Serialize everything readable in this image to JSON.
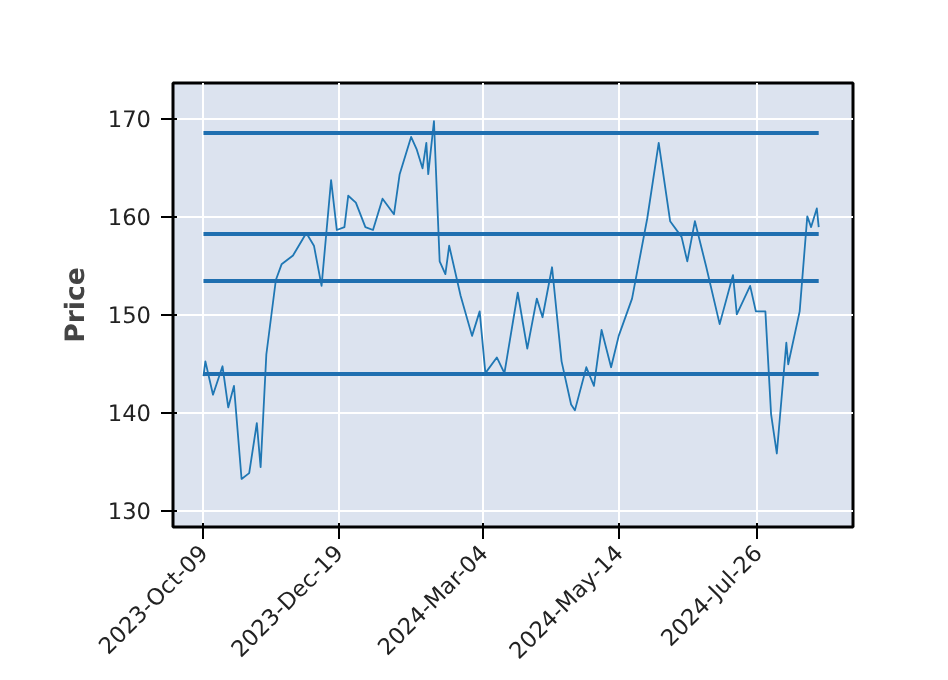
{
  "chart_data": {
    "type": "line",
    "ylabel": "Price",
    "x": [
      "2023-10-09",
      "2023-10-10",
      "2023-10-14",
      "2023-10-19",
      "2023-10-22",
      "2023-10-25",
      "2023-10-29",
      "2023-11-02",
      "2023-11-06",
      "2023-11-08",
      "2023-11-11",
      "2023-11-16",
      "2023-11-19",
      "2023-11-25",
      "2023-12-02",
      "2023-12-06",
      "2023-12-10",
      "2023-12-15",
      "2023-12-18",
      "2023-12-22",
      "2023-12-24",
      "2023-12-28",
      "2024-01-02",
      "2024-01-06",
      "2024-01-11",
      "2024-01-17",
      "2024-01-20",
      "2024-01-26",
      "2024-01-29",
      "2024-02-01",
      "2024-02-03",
      "2024-02-04",
      "2024-02-07",
      "2024-02-10",
      "2024-02-13",
      "2024-02-15",
      "2024-02-21",
      "2024-02-27",
      "2024-03-02",
      "2024-03-05",
      "2024-03-11",
      "2024-03-15",
      "2024-03-22",
      "2024-03-27",
      "2024-04-01",
      "2024-04-04",
      "2024-04-09",
      "2024-04-14",
      "2024-04-19",
      "2024-04-21",
      "2024-04-27",
      "2024-05-01",
      "2024-05-05",
      "2024-05-10",
      "2024-05-14",
      "2024-05-21",
      "2024-05-29",
      "2024-06-04",
      "2024-06-10",
      "2024-06-16",
      "2024-06-19",
      "2024-06-23",
      "2024-06-29",
      "2024-07-06",
      "2024-07-13",
      "2024-07-15",
      "2024-07-22",
      "2024-07-25",
      "2024-07-30",
      "2024-08-02",
      "2024-08-05",
      "2024-08-10",
      "2024-08-11",
      "2024-08-17",
      "2024-08-21",
      "2024-08-23",
      "2024-08-26",
      "2024-08-27"
    ],
    "series": [
      {
        "color": "#1f77b4",
        "values": [
          143.7,
          145.2,
          141.8,
          144.7,
          140.5,
          142.7,
          133.2,
          133.8,
          138.9,
          134.4,
          145.9,
          153.5,
          155.1,
          156.0,
          158.3,
          157.0,
          152.9,
          163.7,
          158.6,
          158.9,
          162.1,
          161.4,
          158.9,
          158.6,
          161.8,
          160.2,
          164.3,
          168.1,
          166.8,
          164.9,
          167.5,
          164.3,
          169.7,
          155.4,
          154.1,
          157.0,
          151.9,
          147.8,
          150.3,
          144.0,
          145.6,
          144.0,
          152.2,
          146.5,
          151.6,
          149.7,
          154.8,
          145.2,
          140.8,
          140.2,
          144.6,
          142.7,
          148.4,
          144.6,
          147.8,
          151.6,
          159.8,
          167.5,
          159.5,
          157.9,
          155.4,
          159.5,
          154.8,
          149.0,
          154.0,
          150.0,
          152.9,
          150.3,
          150.3,
          139.8,
          135.8,
          147.1,
          144.9,
          150.3,
          160.0,
          158.9,
          160.8,
          158.9
        ]
      }
    ],
    "xlim": [
      "2023-09-23",
      "2024-09-14"
    ],
    "xticks": [
      {
        "value": "2023-10-09",
        "label": "2023-Oct-09"
      },
      {
        "value": "2023-12-19",
        "label": "2023-Dec-19"
      },
      {
        "value": "2024-03-04",
        "label": "2024-Mar-04"
      },
      {
        "value": "2024-05-14",
        "label": "2024-May-14"
      },
      {
        "value": "2024-07-26",
        "label": "2024-Jul-26"
      }
    ],
    "ylim": [
      128.3,
      173.6
    ],
    "yticks": [
      130,
      140,
      150,
      160,
      170
    ],
    "ref_lines": [
      {
        "axis": "y",
        "value": 168.5,
        "color": "#1f6fb0"
      },
      {
        "axis": "y",
        "value": 158.2,
        "color": "#1f6fb0"
      },
      {
        "axis": "y",
        "value": 153.4,
        "color": "#1f6fb0"
      },
      {
        "axis": "y",
        "value": 143.9,
        "color": "#1f6fb0"
      }
    ],
    "grid": true
  }
}
